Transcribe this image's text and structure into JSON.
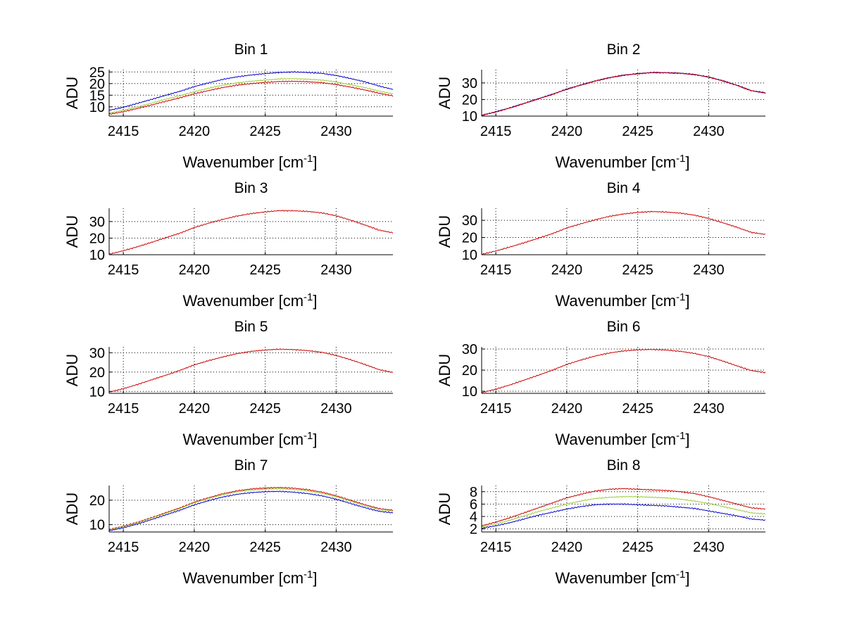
{
  "chart_data": [
    {
      "type": "line",
      "title": "Bin 1",
      "xlabel": "Wavenumber [cm",
      "xlabel_sup": "-1",
      "xlabel_end": "]",
      "ylabel": "ADU",
      "xlim": [
        2414,
        2434
      ],
      "ylim": [
        6,
        26
      ],
      "xticks": [
        2415,
        2420,
        2425,
        2430
      ],
      "yticks": [
        10,
        15,
        20,
        25
      ],
      "grid": true,
      "x": [
        2414,
        2415,
        2416,
        2417,
        2418,
        2419,
        2420,
        2421,
        2422,
        2423,
        2424,
        2425,
        2426,
        2427,
        2428,
        2429,
        2430,
        2431,
        2432,
        2433,
        2434
      ],
      "series": [
        {
          "color": "#0000cc",
          "values": [
            8.5,
            9.8,
            11.5,
            13.2,
            15.0,
            16.7,
            18.7,
            20.3,
            21.8,
            22.9,
            23.7,
            24.3,
            24.8,
            25.0,
            24.8,
            24.4,
            23.5,
            22.2,
            20.8,
            19.0,
            17.5
          ]
        },
        {
          "color": "#9acd32",
          "values": [
            7.3,
            8.5,
            10.0,
            11.6,
            13.3,
            14.8,
            16.5,
            18.0,
            19.3,
            20.3,
            21.0,
            21.5,
            22.0,
            22.1,
            21.9,
            21.5,
            20.7,
            19.5,
            18.3,
            16.8,
            15.5
          ]
        },
        {
          "color": "#cc0000",
          "values": [
            6.8,
            7.9,
            9.3,
            10.8,
            12.4,
            13.9,
            15.6,
            17.0,
            18.3,
            19.3,
            20.0,
            20.5,
            20.9,
            21.0,
            20.8,
            20.4,
            19.6,
            18.5,
            17.3,
            15.9,
            14.7
          ]
        }
      ]
    },
    {
      "type": "line",
      "title": "Bin 2",
      "xlabel": "Wavenumber [cm",
      "xlabel_sup": "-1",
      "xlabel_end": "]",
      "ylabel": "ADU",
      "xlim": [
        2414,
        2434
      ],
      "ylim": [
        10,
        38
      ],
      "xticks": [
        2415,
        2420,
        2425,
        2430
      ],
      "yticks": [
        10,
        20,
        30
      ],
      "grid": true,
      "x": [
        2414,
        2415,
        2416,
        2417,
        2418,
        2419,
        2420,
        2421,
        2422,
        2423,
        2424,
        2425,
        2426,
        2427,
        2428,
        2429,
        2430,
        2431,
        2432,
        2433,
        2434
      ],
      "series": [
        {
          "color": "#0000cc",
          "values": [
            10.5,
            12.6,
            15.0,
            17.7,
            20.5,
            23.2,
            26.3,
            28.8,
            31.2,
            33.2,
            34.7,
            35.6,
            36.3,
            36.2,
            35.9,
            35.1,
            33.6,
            31.3,
            28.6,
            25.4,
            24.0
          ]
        },
        {
          "color": "#cc0000",
          "values": [
            10.4,
            12.5,
            14.9,
            17.6,
            20.4,
            23.1,
            26.2,
            28.7,
            31.1,
            33.1,
            34.6,
            35.5,
            36.2,
            36.1,
            35.8,
            35.0,
            33.5,
            31.2,
            28.5,
            25.3,
            23.9
          ]
        }
      ]
    },
    {
      "type": "line",
      "title": "Bin 3",
      "xlabel": "Wavenumber [cm",
      "xlabel_sup": "-1",
      "xlabel_end": "]",
      "ylabel": "ADU",
      "xlim": [
        2414,
        2434
      ],
      "ylim": [
        10,
        38
      ],
      "xticks": [
        2415,
        2420,
        2425,
        2430
      ],
      "yticks": [
        10,
        20,
        30
      ],
      "grid": true,
      "x": [
        2414,
        2415,
        2416,
        2417,
        2418,
        2419,
        2420,
        2421,
        2422,
        2423,
        2424,
        2425,
        2426,
        2427,
        2428,
        2429,
        2430,
        2431,
        2432,
        2433,
        2434
      ],
      "series": [
        {
          "color": "#cc0000",
          "values": [
            10.3,
            12.4,
            14.8,
            17.5,
            20.3,
            23.0,
            26.4,
            29.0,
            31.3,
            33.3,
            34.8,
            35.8,
            36.6,
            36.5,
            36.1,
            35.2,
            33.5,
            30.9,
            28.0,
            24.9,
            23.2
          ]
        }
      ]
    },
    {
      "type": "line",
      "title": "Bin 4",
      "xlabel": "Wavenumber [cm",
      "xlabel_sup": "-1",
      "xlabel_end": "]",
      "ylabel": "ADU",
      "xlim": [
        2414,
        2434
      ],
      "ylim": [
        10,
        37
      ],
      "xticks": [
        2415,
        2420,
        2425,
        2430
      ],
      "yticks": [
        10,
        20,
        30
      ],
      "grid": true,
      "x": [
        2414,
        2415,
        2416,
        2417,
        2418,
        2419,
        2420,
        2421,
        2422,
        2423,
        2424,
        2425,
        2426,
        2427,
        2428,
        2429,
        2430,
        2431,
        2432,
        2433,
        2434
      ],
      "series": [
        {
          "color": "#cc0000",
          "values": [
            10.2,
            12.2,
            14.5,
            17.0,
            19.6,
            22.3,
            25.6,
            28.0,
            30.3,
            32.3,
            33.7,
            34.6,
            35.1,
            34.8,
            34.2,
            33.0,
            31.1,
            28.6,
            25.9,
            23.0,
            21.8
          ]
        }
      ]
    },
    {
      "type": "line",
      "title": "Bin 5",
      "xlabel": "Wavenumber [cm",
      "xlabel_sup": "-1",
      "xlabel_end": "]",
      "ylabel": "ADU",
      "xlim": [
        2414,
        2434
      ],
      "ylim": [
        9,
        33
      ],
      "xticks": [
        2415,
        2420,
        2425,
        2430
      ],
      "yticks": [
        10,
        20,
        30
      ],
      "grid": true,
      "x": [
        2414,
        2415,
        2416,
        2417,
        2418,
        2419,
        2420,
        2421,
        2422,
        2423,
        2424,
        2425,
        2426,
        2427,
        2428,
        2429,
        2430,
        2431,
        2432,
        2433,
        2434
      ],
      "series": [
        {
          "color": "#cc0000",
          "values": [
            9.6,
            11.4,
            13.6,
            16.0,
            18.4,
            20.9,
            23.7,
            25.9,
            27.8,
            29.5,
            30.7,
            31.4,
            31.8,
            31.6,
            31.1,
            30.2,
            28.6,
            26.4,
            24.0,
            21.3,
            19.8
          ]
        }
      ]
    },
    {
      "type": "line",
      "title": "Bin 6",
      "xlabel": "Wavenumber [cm",
      "xlabel_sup": "-1",
      "xlabel_end": "]",
      "ylabel": "ADU",
      "xlim": [
        2414,
        2434
      ],
      "ylim": [
        9,
        31
      ],
      "xticks": [
        2415,
        2420,
        2425,
        2430
      ],
      "yticks": [
        10,
        20,
        30
      ],
      "grid": true,
      "x": [
        2414,
        2415,
        2416,
        2417,
        2418,
        2419,
        2420,
        2421,
        2422,
        2423,
        2424,
        2425,
        2426,
        2427,
        2428,
        2429,
        2430,
        2431,
        2432,
        2433,
        2434
      ],
      "series": [
        {
          "color": "#cc0000",
          "values": [
            9.3,
            11.0,
            13.0,
            15.3,
            17.6,
            20.0,
            22.7,
            24.8,
            26.7,
            28.1,
            29.1,
            29.6,
            29.8,
            29.5,
            28.9,
            27.9,
            26.4,
            24.3,
            22.0,
            19.8,
            18.8
          ]
        }
      ]
    },
    {
      "type": "line",
      "title": "Bin 7",
      "xlabel": "Wavenumber [cm",
      "xlabel_sup": "-1",
      "xlabel_end": "]",
      "ylabel": "ADU",
      "xlim": [
        2414,
        2434
      ],
      "ylim": [
        7,
        26
      ],
      "xticks": [
        2415,
        2420,
        2425,
        2430
      ],
      "yticks": [
        10,
        20
      ],
      "grid": true,
      "x": [
        2414,
        2415,
        2416,
        2417,
        2418,
        2419,
        2420,
        2421,
        2422,
        2423,
        2424,
        2425,
        2426,
        2427,
        2428,
        2429,
        2430,
        2431,
        2432,
        2433,
        2434
      ],
      "series": [
        {
          "color": "#cc0000",
          "values": [
            8.0,
            9.3,
            11.0,
            12.9,
            14.9,
            16.9,
            19.2,
            21.0,
            22.6,
            23.8,
            24.6,
            25.0,
            25.2,
            24.9,
            24.3,
            23.3,
            21.8,
            20.0,
            18.2,
            16.6,
            15.9
          ]
        },
        {
          "color": "#9acd32",
          "values": [
            7.8,
            9.1,
            10.8,
            12.7,
            14.6,
            16.6,
            18.9,
            20.7,
            22.2,
            23.4,
            24.1,
            24.5,
            24.7,
            24.4,
            23.8,
            22.8,
            21.4,
            19.6,
            17.8,
            16.2,
            15.5
          ]
        },
        {
          "color": "#0000cc",
          "values": [
            7.5,
            8.7,
            10.3,
            12.1,
            14.0,
            15.9,
            18.1,
            19.8,
            21.3,
            22.4,
            23.1,
            23.5,
            23.6,
            23.3,
            22.7,
            21.8,
            20.4,
            18.7,
            17.0,
            15.5,
            14.8
          ]
        }
      ]
    },
    {
      "type": "line",
      "title": "Bin 8",
      "xlabel": "Wavenumber [cm",
      "xlabel_sup": "-1",
      "xlabel_end": "]",
      "ylabel": "ADU",
      "xlim": [
        2414,
        2434
      ],
      "ylim": [
        1.5,
        9
      ],
      "xticks": [
        2415,
        2420,
        2425,
        2430
      ],
      "yticks": [
        2,
        4,
        6,
        8
      ],
      "grid": true,
      "x": [
        2414,
        2415,
        2416,
        2417,
        2418,
        2419,
        2420,
        2421,
        2422,
        2423,
        2424,
        2425,
        2426,
        2427,
        2428,
        2429,
        2430,
        2431,
        2432,
        2433,
        2434
      ],
      "series": [
        {
          "color": "#cc0000",
          "values": [
            2.5,
            3.1,
            3.8,
            4.6,
            5.4,
            6.2,
            7.0,
            7.6,
            8.1,
            8.4,
            8.5,
            8.4,
            8.3,
            8.2,
            8.0,
            7.7,
            7.2,
            6.6,
            6.0,
            5.4,
            5.2
          ]
        },
        {
          "color": "#9acd32",
          "values": [
            2.3,
            2.8,
            3.4,
            4.1,
            4.8,
            5.4,
            6.0,
            6.5,
            6.9,
            7.1,
            7.2,
            7.2,
            7.1,
            7.0,
            6.8,
            6.5,
            6.1,
            5.6,
            5.1,
            4.6,
            4.4
          ]
        },
        {
          "color": "#0000cc",
          "values": [
            2.1,
            2.5,
            3.0,
            3.6,
            4.2,
            4.7,
            5.2,
            5.6,
            5.9,
            6.0,
            6.0,
            5.9,
            5.8,
            5.7,
            5.5,
            5.3,
            4.9,
            4.5,
            4.1,
            3.6,
            3.4
          ]
        }
      ]
    }
  ]
}
